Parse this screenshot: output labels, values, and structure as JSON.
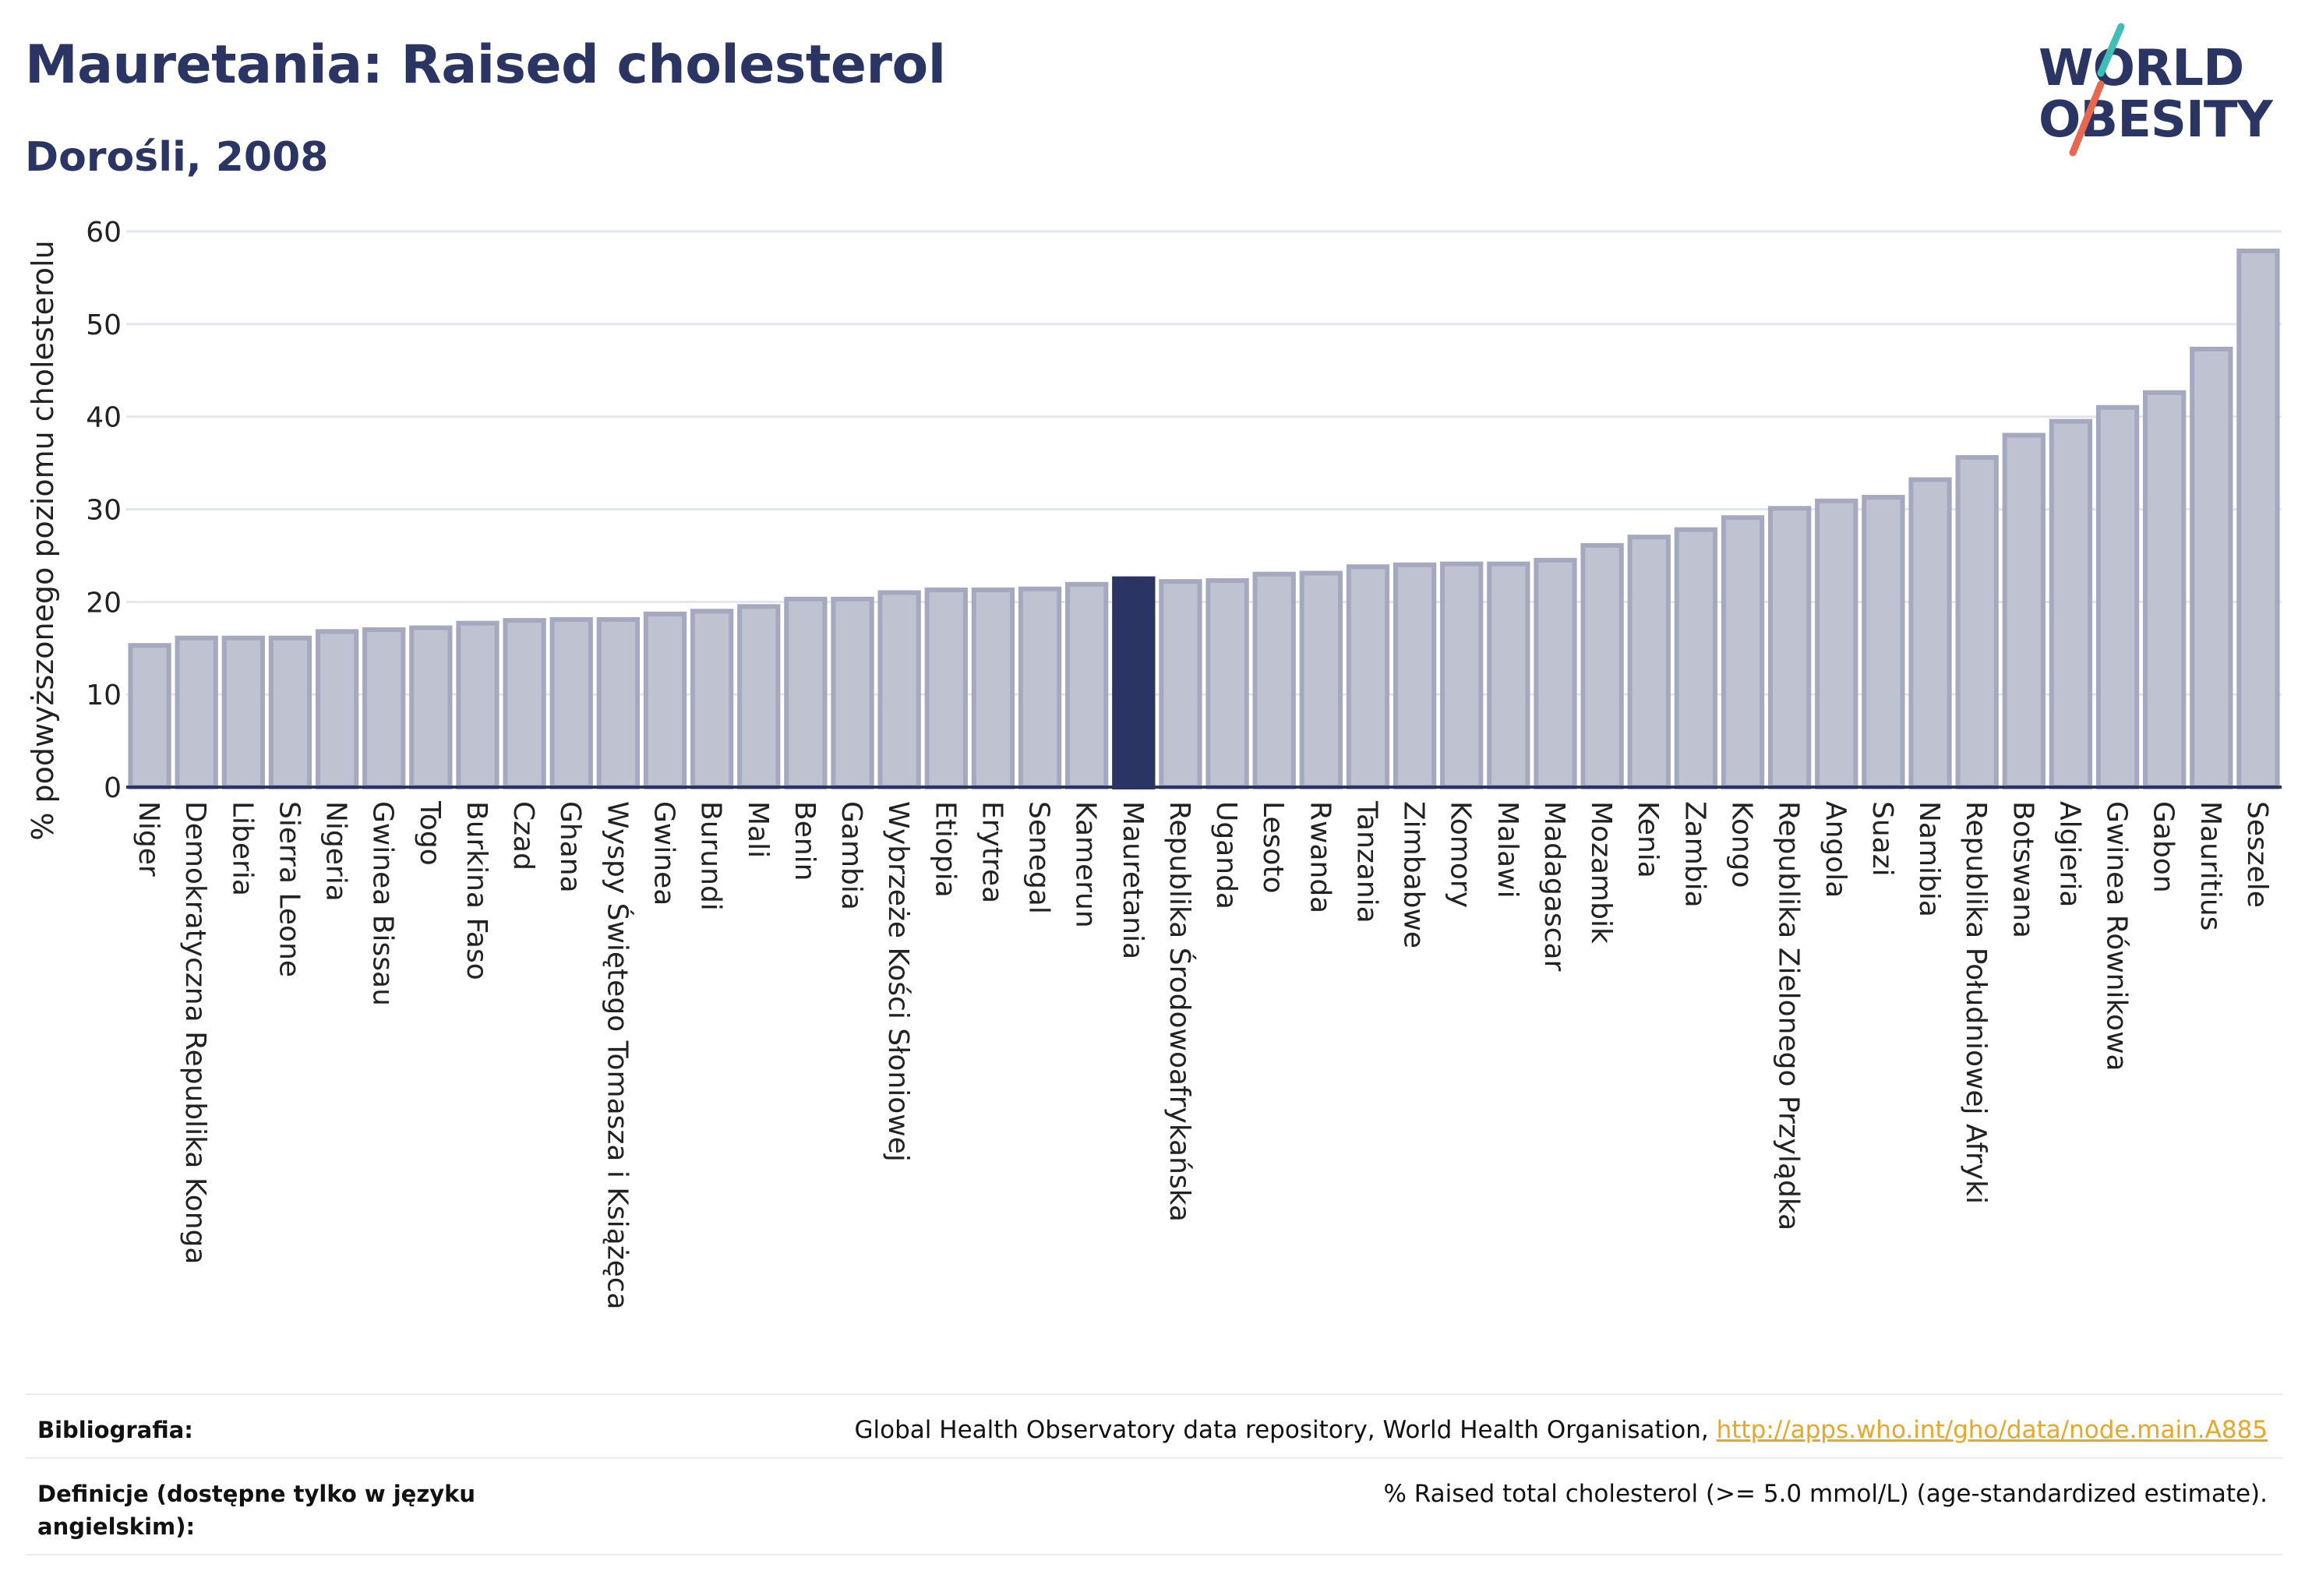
{
  "header": {
    "title": "Mauretania: Raised cholesterol",
    "subtitle": "Dorośli, 2008"
  },
  "logo": {
    "line1": "WORLD",
    "line2": "OBESITY",
    "slash_colors": [
      "#3cbfb4",
      "#e8674e"
    ]
  },
  "colors": {
    "bar": "#bec2d1",
    "bar_border": "#a4a9c0",
    "highlight": "#2a3563",
    "axis": "#2a3563",
    "grid": "#e4e6ee",
    "link": "#e8a727"
  },
  "chart_data": {
    "type": "bar",
    "ylabel": "% podwyższonego poziomu cholesterolu",
    "ylim": [
      0,
      60
    ],
    "yticks": [
      0,
      10,
      20,
      30,
      40,
      50,
      60
    ],
    "grid": true,
    "highlight": "Mauretania",
    "categories": [
      "Niger",
      "Demokratyczna Republika Konga",
      "Liberia",
      "Sierra Leone",
      "Nigeria",
      "Gwinea Bissau",
      "Togo",
      "Burkina Faso",
      "Czad",
      "Ghana",
      "Wyspy Świętego Tomasza i Książęca",
      "Gwinea",
      "Burundi",
      "Mali",
      "Benin",
      "Gambia",
      "Wybrzeże Kości Słoniowej",
      "Etiopia",
      "Erytrea",
      "Senegal",
      "Kamerun",
      "Mauretania",
      "Republika Środowoafrykańska",
      "Uganda",
      "Lesoto",
      "Rwanda",
      "Tanzania",
      "Zimbabwe",
      "Komory",
      "Malawi",
      "Madagascar",
      "Mozambik",
      "Kenia",
      "Zambia",
      "Kongo",
      "Republika Zielonego Przylądka",
      "Angola",
      "Suazi",
      "Namibia",
      "Republika Południowej Afryki",
      "Botswana",
      "Algieria",
      "Gwinea Równikowa",
      "Gabon",
      "Mauritius",
      "Seszele"
    ],
    "values": [
      15.3,
      16.1,
      16.1,
      16.1,
      16.8,
      17.0,
      17.2,
      17.7,
      18.0,
      18.1,
      18.1,
      18.7,
      19.0,
      19.5,
      20.3,
      20.3,
      21.0,
      21.3,
      21.3,
      21.4,
      21.9,
      22.5,
      22.2,
      22.3,
      23.0,
      23.1,
      23.8,
      24.0,
      24.1,
      24.1,
      24.5,
      26.1,
      27.0,
      27.8,
      29.1,
      30.1,
      30.9,
      31.3,
      33.2,
      35.6,
      38.0,
      39.5,
      41.0,
      42.6,
      47.3,
      57.9
    ]
  },
  "footer": {
    "bibliography_label": "Bibliografia:",
    "bibliography_text": "Global Health Observatory data repository, World Health Organisation, ",
    "bibliography_link": "http://apps.who.int/gho/data/node.main.A885",
    "definition_label": "Definicje (dostępne tylko w języku angielskim):",
    "definition_text": "% Raised total cholesterol (>= 5.0 mmol/L) (age-standardized estimate)."
  }
}
